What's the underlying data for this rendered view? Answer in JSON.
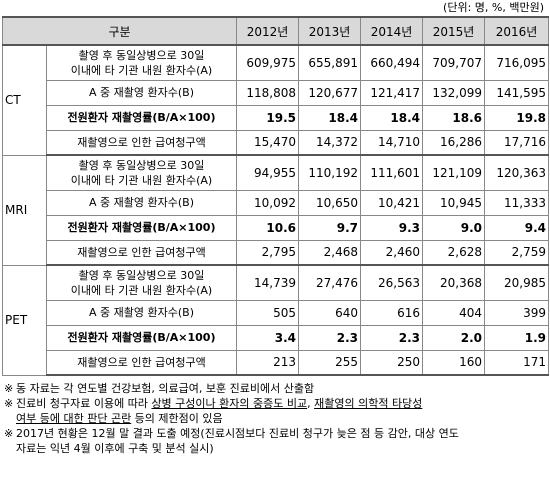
{
  "unit_note": "(단위: 명, %, 백만원)",
  "header": {
    "category": "구분",
    "years": [
      "2012년",
      "2013년",
      "2014년",
      "2015년",
      "2016년"
    ]
  },
  "groups": [
    {
      "name": "CT",
      "rows": [
        {
          "label_line1": "촬영 후 동일상병으로 30일",
          "label_line2": "이내에 타 기관 내원 환자수(A)",
          "values": [
            "609,975",
            "655,891",
            "660,494",
            "709,707",
            "716,095"
          ]
        },
        {
          "label_line1": "A 중 재촬영 환자수(B)",
          "values": [
            "118,808",
            "120,677",
            "121,417",
            "132,099",
            "141,595"
          ]
        },
        {
          "label_line1": "전원환자 재촬영률(B/A×100)",
          "values": [
            "19.5",
            "18.4",
            "18.4",
            "18.6",
            "19.8"
          ]
        },
        {
          "label_line1": "재촬영으로 인한 급여청구액",
          "values": [
            "15,470",
            "14,372",
            "14,710",
            "16,286",
            "17,716"
          ]
        }
      ]
    },
    {
      "name": "MRI",
      "rows": [
        {
          "label_line1": "촬영 후 동일상병으로 30일",
          "label_line2": "이내에 타 기관 내원 환자수(A)",
          "values": [
            "94,955",
            "110,192",
            "111,601",
            "121,109",
            "120,363"
          ]
        },
        {
          "label_line1": "A 중 재촬영 환자수(B)",
          "values": [
            "10,092",
            "10,650",
            "10,421",
            "10,945",
            "11,333"
          ]
        },
        {
          "label_line1": "전원환자 재촬영률(B/A×100)",
          "values": [
            "10.6",
            "9.7",
            "9.3",
            "9.0",
            "9.4"
          ]
        },
        {
          "label_line1": "재촬영으로 인한 급여청구액",
          "values": [
            "2,795",
            "2,468",
            "2,460",
            "2,628",
            "2,759"
          ]
        }
      ]
    },
    {
      "name": "PET",
      "rows": [
        {
          "label_line1": "촬영 후 동일상병으로 30일",
          "label_line2": "이내에 타 기관 내원 환자수(A)",
          "values": [
            "14,739",
            "27,476",
            "26,563",
            "20,368",
            "20,985"
          ]
        },
        {
          "label_line1": "A 중 재촬영 환자수(B)",
          "values": [
            "505",
            "640",
            "616",
            "404",
            "399"
          ]
        },
        {
          "label_line1": "전원환자 재촬영률(B/A×100)",
          "values": [
            "3.4",
            "2.3",
            "2.3",
            "2.0",
            "1.9"
          ]
        },
        {
          "label_line1": "재촬영으로 인한 급여청구액",
          "values": [
            "213",
            "255",
            "250",
            "160",
            "171"
          ]
        }
      ]
    }
  ],
  "notes": {
    "mark": "※",
    "n1": "동 자료는 각 연도별 건강보험, 의료급여, 보훈 진료비에서 산출함",
    "n2_a": "진료비 청구자료 이용에 따라 ",
    "n2_u1": "상병 구성이나 환자의 중증도 비교",
    "n2_b": ", ",
    "n2_u2": "재촬영의 의학적 타당성",
    "n2_line2_u": "여부 등에 대한 판단 곤란",
    "n2_line2_c": " 등의 제한점이 있음",
    "n3_line1": "2017년 현황은 12월 말 결과 도출 예정(진료시점보다 진료비 청구가 늦은 점 등 감안, 대상 연도",
    "n3_line2": "자료는 익년 4월 이후에 구축 및 분석 실시)"
  }
}
